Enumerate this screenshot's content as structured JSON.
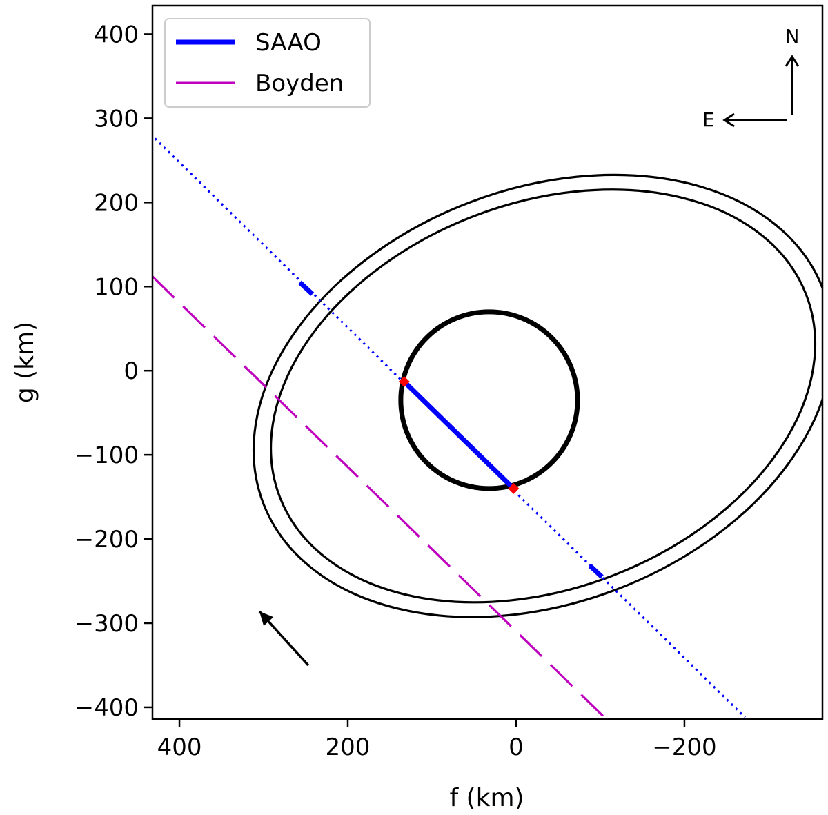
{
  "chart_data": {
    "type": "line",
    "xlabel": "f (km)",
    "ylabel": "g (km)",
    "xlim": [
      432,
      -364
    ],
    "ylim": [
      -414,
      434
    ],
    "x_ticks": [
      400,
      200,
      0,
      -200
    ],
    "x_tick_labels": [
      "400",
      "200",
      "0",
      "−200"
    ],
    "y_ticks": [
      400,
      300,
      200,
      100,
      0,
      -100,
      -200,
      -300,
      -400
    ],
    "y_tick_labels": [
      "400",
      "300",
      "200",
      "100",
      "0",
      "−100",
      "−200",
      "−300",
      "−400"
    ],
    "grid": false,
    "legend": {
      "placement": "top-left",
      "entries": [
        {
          "name": "SAAO",
          "color": "#0000ff",
          "style": "solid-thick"
        },
        {
          "name": "Boyden",
          "color": "#bf00bf",
          "style": "solid"
        }
      ]
    },
    "series": [
      {
        "name": "SAAO",
        "kind": "dotted-chord",
        "color": "#0000ff",
        "points": [
          [
            429,
            276
          ],
          [
            -272,
            -412
          ]
        ]
      },
      {
        "name": "SAAO",
        "kind": "solid-chord",
        "color": "#0000ff",
        "points": [
          [
            133,
            -13
          ],
          [
            3,
            -140
          ]
        ]
      },
      {
        "name": "SAAO",
        "kind": "solid-chord",
        "color": "#0000ff",
        "points": [
          [
            257,
            105
          ],
          [
            242,
            91
          ]
        ]
      },
      {
        "name": "SAAO",
        "kind": "solid-chord",
        "color": "#0000ff",
        "points": [
          [
            -88,
            -232
          ],
          [
            -102,
            -245
          ]
        ]
      },
      {
        "name": "Boyden",
        "kind": "dashed-chord",
        "color": "#bf00bf",
        "points": [
          [
            432,
            112
          ],
          [
            -105,
            -412
          ]
        ]
      }
    ],
    "contact_points": [
      [
        133,
        -13
      ],
      [
        3,
        -140
      ]
    ],
    "shapes": [
      {
        "kind": "circle",
        "name": "body",
        "center": [
          32,
          -35
        ],
        "radius": 105
      },
      {
        "kind": "ellipse",
        "name": "outer-ring",
        "center": [
          -32,
          -30
        ],
        "rx": 356,
        "ry": 246,
        "angle": -21
      },
      {
        "kind": "ellipse",
        "name": "inner-ring",
        "center": [
          -32,
          -30
        ],
        "rx": 335,
        "ry": 229,
        "angle": -21
      }
    ],
    "motion_arrow": {
      "from": [
        247,
        -350
      ],
      "to": [
        305,
        -286
      ]
    },
    "compass": {
      "north_label": "N",
      "east_label": "E"
    }
  }
}
